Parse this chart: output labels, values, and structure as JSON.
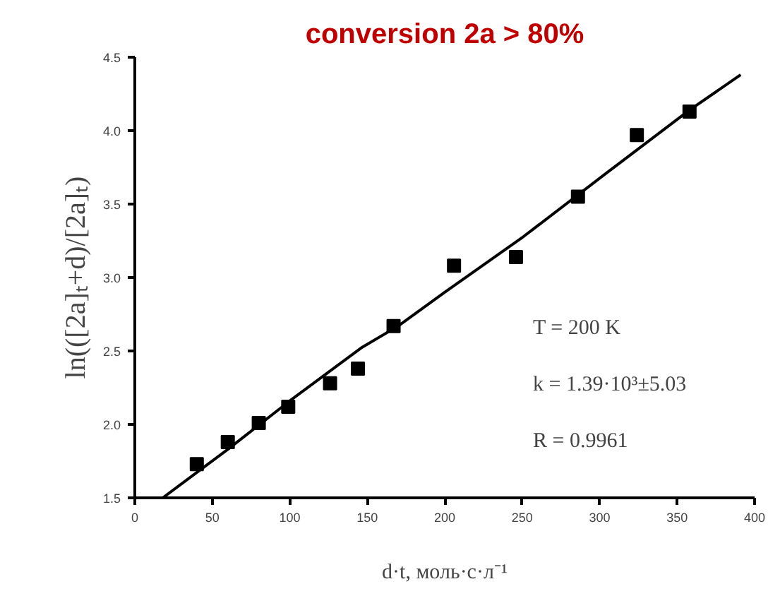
{
  "chart_data": {
    "type": "scatter",
    "title": "conversion 2a > 80%",
    "xlabel": "d·t, моль·с·л⁻¹",
    "ylabel": "ln(([2a]ₜ+d)/[2a]ₜ)",
    "xlim": [
      0,
      400
    ],
    "xticks": [
      0,
      50,
      100,
      150,
      200,
      250,
      300,
      350,
      400
    ],
    "ylim": [
      1.5,
      4.5
    ],
    "yticks": [
      {
        "value": 1.5,
        "label": "1.5"
      },
      {
        "value": 2,
        "label": "2.0"
      },
      {
        "value": 2.5,
        "label": "2.5"
      },
      {
        "value": 3,
        "label": "3.0"
      },
      {
        "value": 3.5,
        "label": "3.5"
      },
      {
        "value": 4,
        "label": "4.0"
      },
      {
        "value": 4.5,
        "label": "4.5"
      }
    ],
    "grid": false,
    "marker": "square",
    "annotations": [
      "T = 200 K",
      "k = 1.39·10³±5.03",
      "R = 0.9961"
    ],
    "series": [
      {
        "color": "#000000",
        "x": [
          40,
          60,
          80,
          99,
          126,
          144,
          167,
          206,
          246,
          286,
          324,
          358
        ],
        "values": [
          1.73,
          1.88,
          2.01,
          2.12,
          2.28,
          2.38,
          2.67,
          3.08,
          3.14,
          3.55,
          3.97,
          4.13
        ]
      },
      {
        "type": "line",
        "color": "#000000",
        "marker": "none",
        "line_style": "solid",
        "x": [
          18,
          60,
          100,
          146,
          170,
          200,
          251,
          303,
          358,
          391
        ],
        "values": [
          1.5,
          1.83,
          2.16,
          2.52,
          2.67,
          2.9,
          3.28,
          3.7,
          4.14,
          4.38
        ]
      }
    ]
  }
}
